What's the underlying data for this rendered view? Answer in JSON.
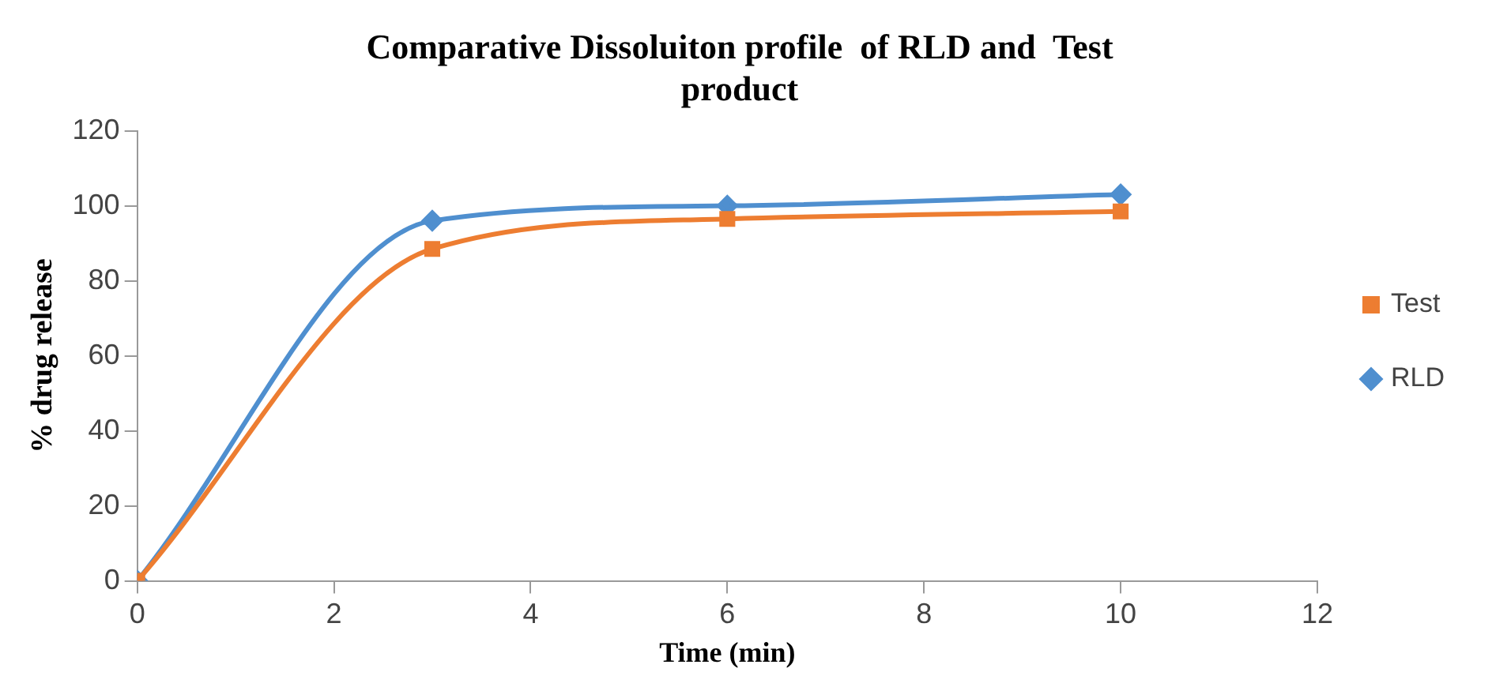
{
  "chart_data": {
    "type": "line",
    "title": "Comparative Dissoluiton profile  of RLD and  Test product",
    "xlabel": "Time (min)",
    "ylabel": "% drug release",
    "x": [
      0,
      3,
      6,
      10
    ],
    "series": [
      {
        "name": "Test",
        "color": "#ed7d31",
        "values": [
          0,
          88.5,
          96.5,
          98.5
        ],
        "marker": "square"
      },
      {
        "name": "RLD",
        "color": "#4f8fcf",
        "values": [
          0,
          96,
          100,
          103
        ],
        "marker": "diamond"
      }
    ],
    "xlim": [
      0,
      12
    ],
    "xticks": [
      0,
      2,
      4,
      6,
      8,
      10,
      12
    ],
    "ylim": [
      0,
      120
    ],
    "yticks": [
      0,
      20,
      40,
      60,
      80,
      100,
      120
    ],
    "grid": false,
    "legend": "right"
  }
}
